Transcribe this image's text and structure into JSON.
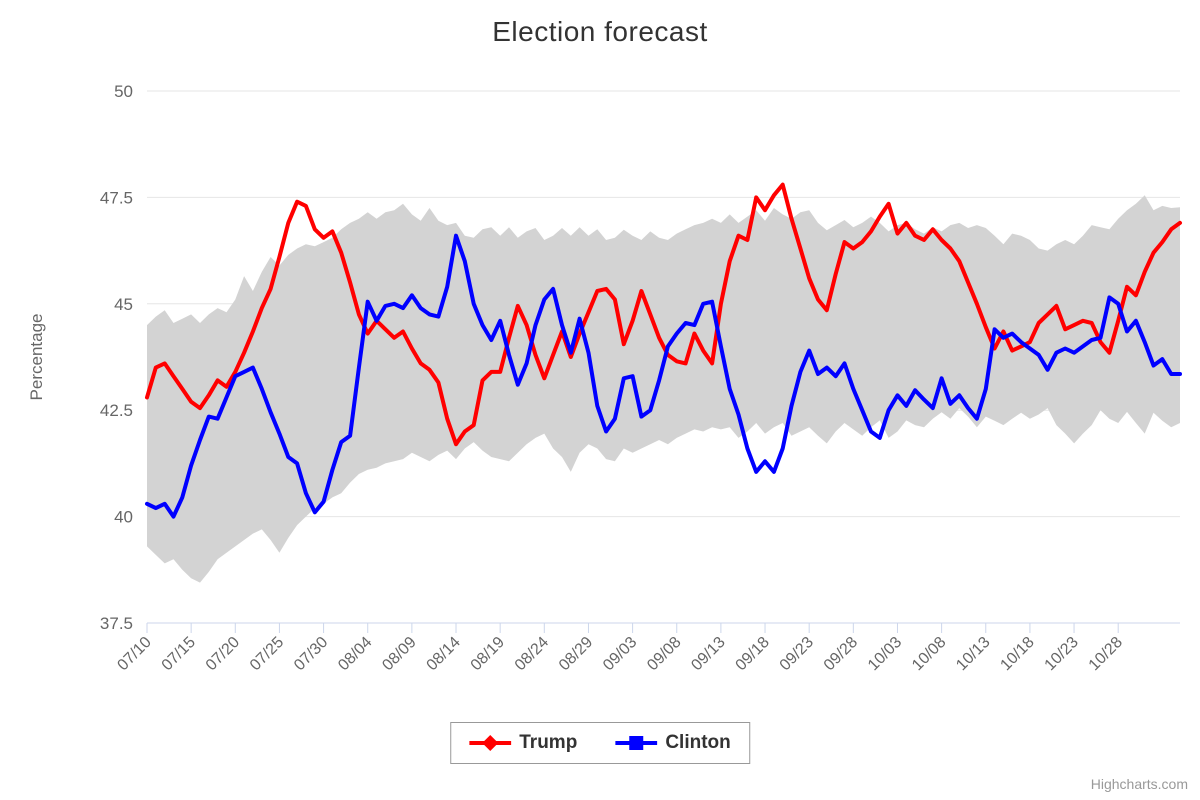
{
  "chart_data": {
    "type": "line",
    "title": "Election forecast",
    "xlabel": "",
    "ylabel": "Percentage",
    "ylim": [
      37.5,
      50
    ],
    "grid": "horizontal",
    "legend_position": "bottom-center",
    "yticks": [
      {
        "value": 50,
        "label": "50"
      },
      {
        "value": 47.5,
        "label": "47.5"
      },
      {
        "value": 45,
        "label": "45"
      },
      {
        "value": 42.5,
        "label": "42.5"
      },
      {
        "value": 40,
        "label": "40"
      },
      {
        "value": 37.5,
        "label": "37.5"
      }
    ],
    "xtick_every": 5,
    "xtick_labels": [
      "07/10",
      "07/15",
      "07/20",
      "07/25",
      "07/30",
      "08/04",
      "08/09",
      "08/14",
      "08/19",
      "08/24",
      "08/29",
      "09/03",
      "09/08",
      "09/13",
      "09/18",
      "09/23",
      "09/28",
      "10/03",
      "10/08",
      "10/13",
      "10/18",
      "10/23",
      "10/28"
    ],
    "x": [
      "07/10",
      "07/11",
      "07/12",
      "07/13",
      "07/14",
      "07/15",
      "07/16",
      "07/17",
      "07/18",
      "07/19",
      "07/20",
      "07/21",
      "07/22",
      "07/23",
      "07/24",
      "07/25",
      "07/26",
      "07/27",
      "07/28",
      "07/29",
      "07/30",
      "07/31",
      "08/01",
      "08/02",
      "08/03",
      "08/04",
      "08/05",
      "08/06",
      "08/07",
      "08/08",
      "08/09",
      "08/10",
      "08/11",
      "08/12",
      "08/13",
      "08/14",
      "08/15",
      "08/16",
      "08/17",
      "08/18",
      "08/19",
      "08/20",
      "08/21",
      "08/22",
      "08/23",
      "08/24",
      "08/25",
      "08/26",
      "08/27",
      "08/28",
      "08/29",
      "08/30",
      "08/31",
      "09/01",
      "09/02",
      "09/03",
      "09/04",
      "09/05",
      "09/06",
      "09/07",
      "09/08",
      "09/09",
      "09/10",
      "09/11",
      "09/12",
      "09/13",
      "09/14",
      "09/15",
      "09/16",
      "09/17",
      "09/18",
      "09/19",
      "09/20",
      "09/21",
      "09/22",
      "09/23",
      "09/24",
      "09/25",
      "09/26",
      "09/27",
      "09/28",
      "09/29",
      "09/30",
      "10/01",
      "10/02",
      "10/03",
      "10/04",
      "10/05",
      "10/06",
      "10/07",
      "10/08",
      "10/09",
      "10/10",
      "10/11",
      "10/12",
      "10/13",
      "10/14",
      "10/15",
      "10/16",
      "10/17",
      "10/18",
      "10/19",
      "10/20",
      "10/21",
      "10/22",
      "10/23",
      "10/24",
      "10/25",
      "10/26",
      "10/27",
      "10/28",
      "10/29",
      "10/30",
      "10/31",
      "11/01",
      "11/02",
      "11/03",
      "11/04"
    ],
    "series": [
      {
        "name": "Trump",
        "color": "#FF0000",
        "marker": "diamond",
        "values": [
          42.8,
          43.5,
          43.6,
          43.3,
          43.0,
          42.7,
          42.55,
          42.85,
          43.2,
          43.05,
          43.4,
          43.85,
          44.35,
          44.9,
          45.35,
          46.1,
          46.9,
          47.4,
          47.3,
          46.75,
          46.55,
          46.7,
          46.2,
          45.5,
          44.75,
          44.3,
          44.6,
          44.4,
          44.2,
          44.35,
          43.95,
          43.6,
          43.45,
          43.15,
          42.3,
          41.7,
          42.0,
          42.15,
          43.2,
          43.4,
          43.4,
          44.2,
          44.95,
          44.5,
          43.8,
          43.25,
          43.8,
          44.35,
          43.75,
          44.3,
          44.8,
          45.3,
          45.35,
          45.1,
          44.05,
          44.6,
          45.3,
          44.75,
          44.2,
          43.8,
          43.65,
          43.6,
          44.3,
          43.9,
          43.6,
          45.0,
          46.0,
          46.6,
          46.5,
          47.5,
          47.2,
          47.55,
          47.8,
          47.0,
          46.3,
          45.6,
          45.1,
          44.85,
          45.7,
          46.45,
          46.3,
          46.45,
          46.7,
          47.05,
          47.35,
          46.65,
          46.9,
          46.6,
          46.5,
          46.75,
          46.5,
          46.3,
          46.0,
          45.5,
          45.0,
          44.45,
          43.95,
          44.35,
          43.9,
          44.0,
          44.1,
          44.55,
          44.75,
          44.95,
          44.4,
          44.5,
          44.6,
          44.55,
          44.1,
          43.85,
          44.6,
          45.4,
          45.2,
          45.75,
          46.2,
          46.45,
          46.75,
          46.9
        ]
      },
      {
        "name": "Clinton",
        "color": "#0000FF",
        "marker": "square",
        "values": [
          40.3,
          40.2,
          40.3,
          40.0,
          40.45,
          41.2,
          41.8,
          42.35,
          42.3,
          42.8,
          43.3,
          43.4,
          43.5,
          43.0,
          42.45,
          41.95,
          41.4,
          41.25,
          40.55,
          40.1,
          40.35,
          41.1,
          41.75,
          41.9,
          43.5,
          45.05,
          44.6,
          44.95,
          45.0,
          44.9,
          45.2,
          44.9,
          44.75,
          44.7,
          45.4,
          46.6,
          46.0,
          45.0,
          44.5,
          44.15,
          44.6,
          43.8,
          43.1,
          43.6,
          44.5,
          45.1,
          45.35,
          44.5,
          43.85,
          44.65,
          43.85,
          42.6,
          42.0,
          42.3,
          43.25,
          43.3,
          42.35,
          42.5,
          43.2,
          44.0,
          44.3,
          44.55,
          44.5,
          45.0,
          45.05,
          44.0,
          43.0,
          42.4,
          41.6,
          41.05,
          41.3,
          41.05,
          41.6,
          42.6,
          43.4,
          43.9,
          43.35,
          43.5,
          43.3,
          43.6,
          43.0,
          42.5,
          42.0,
          41.85,
          42.5,
          42.85,
          42.6,
          42.97,
          42.75,
          42.55,
          43.25,
          42.65,
          42.85,
          42.55,
          42.3,
          43.0,
          44.4,
          44.2,
          44.3,
          44.1,
          43.95,
          43.8,
          43.45,
          43.85,
          43.95,
          43.85,
          44.0,
          44.15,
          44.2,
          45.15,
          45.0,
          44.35,
          44.6,
          44.1,
          43.55,
          43.7,
          43.35,
          43.35
        ]
      }
    ],
    "range_band": {
      "name": "uncertainty-range",
      "color": "#D3D3D3",
      "low": [
        39.3,
        39.1,
        38.9,
        39.0,
        38.75,
        38.55,
        38.45,
        38.7,
        39.0,
        39.15,
        39.3,
        39.45,
        39.6,
        39.7,
        39.45,
        39.15,
        39.5,
        39.8,
        40.0,
        40.2,
        40.3,
        40.45,
        40.55,
        40.8,
        41.0,
        41.1,
        41.15,
        41.25,
        41.3,
        41.35,
        41.5,
        41.4,
        41.3,
        41.45,
        41.55,
        41.35,
        41.6,
        41.75,
        41.55,
        41.4,
        41.35,
        41.3,
        41.5,
        41.7,
        41.85,
        41.95,
        41.6,
        41.4,
        41.05,
        41.5,
        41.7,
        41.6,
        41.35,
        41.3,
        41.6,
        41.5,
        41.6,
        41.7,
        41.8,
        41.7,
        41.85,
        41.95,
        42.05,
        42.0,
        42.1,
        42.05,
        42.1,
        41.85,
        42.0,
        42.2,
        41.95,
        42.1,
        42.2,
        41.9,
        42.0,
        42.1,
        41.9,
        41.72,
        42.0,
        42.2,
        42.05,
        41.9,
        42.1,
        42.26,
        41.85,
        42.0,
        42.26,
        42.15,
        42.1,
        42.3,
        42.45,
        42.3,
        42.55,
        42.35,
        42.1,
        42.35,
        42.25,
        42.15,
        42.3,
        42.44,
        42.3,
        42.4,
        42.55,
        42.15,
        41.95,
        41.72,
        41.95,
        42.15,
        42.5,
        42.3,
        42.2,
        42.46,
        42.2,
        41.95,
        42.44,
        42.25,
        42.1,
        42.2
      ],
      "high": [
        44.5,
        44.7,
        44.85,
        44.55,
        44.65,
        44.75,
        44.55,
        44.75,
        44.9,
        44.8,
        45.1,
        45.65,
        45.3,
        45.75,
        46.1,
        45.9,
        46.15,
        46.3,
        46.4,
        46.35,
        46.45,
        46.55,
        46.75,
        46.9,
        47.0,
        47.15,
        47.0,
        47.15,
        47.2,
        47.35,
        47.1,
        46.95,
        47.25,
        46.95,
        46.85,
        46.9,
        46.6,
        46.55,
        46.75,
        46.8,
        46.6,
        46.8,
        46.55,
        46.7,
        46.78,
        46.5,
        46.6,
        46.78,
        46.6,
        46.8,
        46.6,
        46.75,
        46.5,
        46.55,
        46.74,
        46.6,
        46.5,
        46.7,
        46.55,
        46.5,
        46.65,
        46.75,
        46.85,
        46.9,
        47.0,
        46.9,
        47.1,
        46.9,
        47.05,
        47.2,
        46.95,
        47.25,
        47.1,
        47.0,
        47.15,
        47.2,
        46.9,
        46.73,
        46.85,
        46.97,
        46.8,
        46.9,
        47.05,
        46.9,
        46.7,
        46.85,
        46.9,
        46.75,
        46.65,
        46.8,
        46.7,
        46.85,
        46.9,
        46.78,
        46.85,
        46.78,
        46.6,
        46.4,
        46.65,
        46.6,
        46.5,
        46.3,
        46.25,
        46.4,
        46.5,
        46.4,
        46.6,
        46.85,
        46.8,
        46.75,
        47.0,
        47.2,
        47.35,
        47.55,
        47.2,
        47.3,
        47.25,
        47.27
      ]
    },
    "colors": {
      "grid_line": "#E6E6E6",
      "axis_line": "#CCD6EB",
      "tick": "#CCD6EB",
      "axis_label": "#666666",
      "title_text": "#333333"
    }
  },
  "credit": {
    "label": "Highcharts.com"
  }
}
